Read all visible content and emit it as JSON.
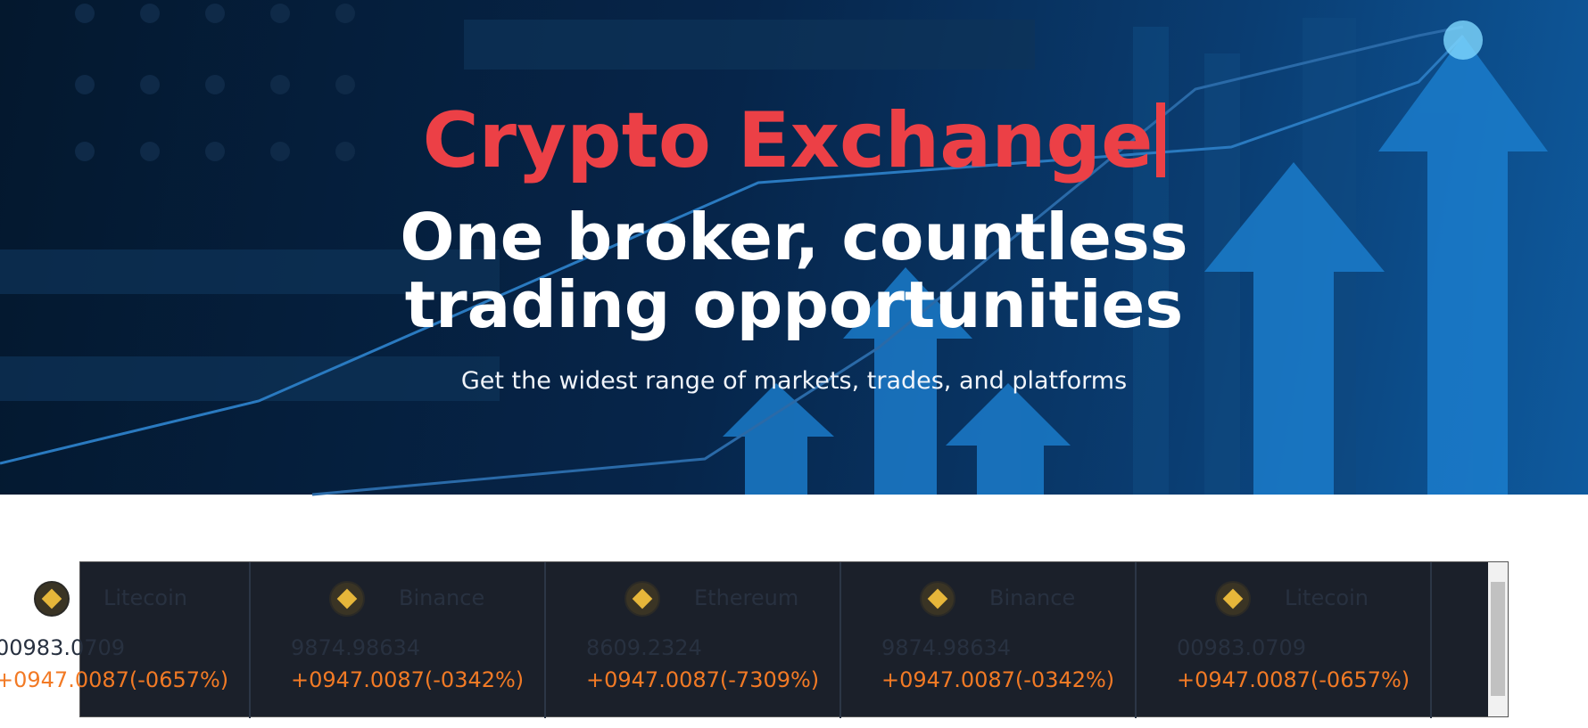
{
  "hero": {
    "title": "Crypto Exchange",
    "headline_lines": [
      "One broker, countless",
      "trading opportunities"
    ],
    "tagline": "Get the widest range of markets, trades, and platforms"
  },
  "ticker": {
    "cards": [
      {
        "name": "Litecoin",
        "price": "00983.0709",
        "change": "+0947.0087(-0657%)"
      },
      {
        "name": "Binance",
        "price": "9874.98634",
        "change": "+0947.0087(-0342%)"
      },
      {
        "name": "Ethereum",
        "price": "8609.2324",
        "change": "+0947.0087(-7309%)"
      },
      {
        "name": "Binance",
        "price": "9874.98634",
        "change": "+0947.0087(-0342%)"
      },
      {
        "name": "Litecoin",
        "price": "00983.0709",
        "change": "+0947.0087(-0657%)"
      }
    ]
  }
}
